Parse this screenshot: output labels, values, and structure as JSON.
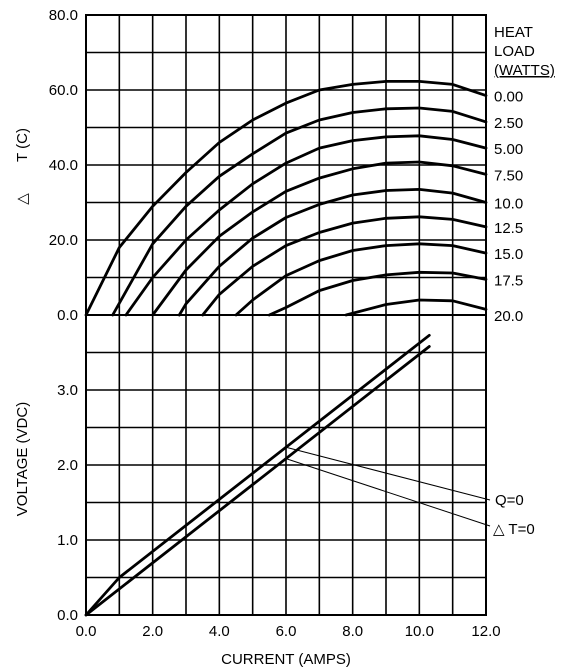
{
  "chart_data": [
    {
      "type": "line",
      "ylabel_symbol": "△",
      "ylabel": "T (C)",
      "xlim": [
        0,
        12
      ],
      "ylim": [
        0,
        80
      ],
      "x_ticks": [
        0,
        2,
        4,
        6,
        8,
        10,
        12
      ],
      "y_ticks": [
        0,
        20,
        40,
        60,
        80
      ],
      "y_tick_labels": [
        "0.0",
        "20.0",
        "40.0",
        "60.0",
        "80.0"
      ],
      "grid": true,
      "legend_title": [
        "HEAT",
        "LOAD",
        "(WATTS)"
      ],
      "legend_placement": "right",
      "series": [
        {
          "name": "0.00",
          "label_y": 58.5,
          "x": [
            0,
            1,
            2,
            3,
            4,
            5,
            6,
            7,
            8,
            9,
            10,
            11,
            12
          ],
          "y": [
            0,
            18,
            29,
            38,
            46,
            52,
            56.5,
            60,
            61.5,
            62.3,
            62.3,
            61.5,
            58.5
          ]
        },
        {
          "name": "2.50",
          "label_y": 51.5,
          "x": [
            0.8,
            2,
            3,
            4,
            5,
            6,
            7,
            8,
            9,
            10,
            11,
            12
          ],
          "y": [
            0,
            19,
            29,
            37,
            43,
            48.5,
            52,
            54,
            55,
            55.2,
            54.3,
            51.5
          ]
        },
        {
          "name": "5.00",
          "label_y": 44.5,
          "x": [
            1.2,
            2,
            3,
            4,
            5,
            6,
            7,
            8,
            9,
            10,
            11,
            12
          ],
          "y": [
            0,
            10,
            20,
            28,
            35,
            40.5,
            44.5,
            46.5,
            47.5,
            47.8,
            46.8,
            44.5
          ]
        },
        {
          "name": "7.50",
          "label_y": 37.5,
          "x": [
            2,
            3,
            4,
            5,
            6,
            7,
            8,
            9,
            10,
            11,
            12
          ],
          "y": [
            0,
            12,
            21,
            27.5,
            33,
            36.5,
            39,
            40.5,
            40.8,
            39.8,
            37.5
          ]
        },
        {
          "name": "10.0",
          "label_y": 30,
          "x": [
            2.8,
            3,
            4,
            5,
            6,
            7,
            8,
            9,
            10,
            11,
            12
          ],
          "y": [
            0,
            3,
            13,
            20.5,
            26,
            29.5,
            32,
            33.2,
            33.5,
            32.5,
            30
          ]
        },
        {
          "name": "12.5",
          "label_y": 23.5,
          "x": [
            3.5,
            4,
            5,
            6,
            7,
            8,
            9,
            10,
            11,
            12
          ],
          "y": [
            0,
            5.5,
            13,
            18.5,
            22,
            24.5,
            25.8,
            26.2,
            25.5,
            23.5
          ]
        },
        {
          "name": "15.0",
          "label_y": 16.5,
          "x": [
            4.5,
            5,
            6,
            7,
            8,
            9,
            10,
            11,
            12
          ],
          "y": [
            0,
            4,
            10.5,
            14.5,
            17.2,
            18.5,
            19,
            18.5,
            16.5
          ]
        },
        {
          "name": "17.5",
          "label_y": 9.5,
          "x": [
            5.5,
            6,
            7,
            8,
            9,
            10,
            11,
            12
          ],
          "y": [
            0,
            2,
            6.5,
            9.2,
            10.7,
            11.4,
            11.2,
            9.5
          ]
        },
        {
          "name": "20.0",
          "label_y": 0,
          "x": [
            7.8,
            9,
            10,
            11,
            12
          ],
          "y": [
            0,
            2.8,
            4,
            3.8,
            1.5
          ]
        }
      ]
    },
    {
      "type": "line",
      "xlabel": "CURRENT (AMPS)",
      "ylabel": "VOLTAGE (VDC)",
      "xlim": [
        0,
        12
      ],
      "ylim": [
        0,
        4
      ],
      "x_ticks": [
        0,
        2,
        4,
        6,
        8,
        10,
        12
      ],
      "x_tick_labels": [
        "0.0",
        "2.0",
        "4.0",
        "6.0",
        "8.0",
        "10.0",
        "12.0"
      ],
      "y_ticks": [
        0,
        1,
        2,
        3
      ],
      "y_tick_labels": [
        "0.0",
        "1.0",
        "2.0",
        "3.0"
      ],
      "grid": true,
      "series": [
        {
          "name": "Q=0",
          "x": [
            0,
            1,
            10.3
          ],
          "y": [
            0,
            0.5,
            3.73
          ]
        },
        {
          "name": "△ T=0",
          "x": [
            0,
            10.3
          ],
          "y": [
            0,
            3.58
          ]
        }
      ],
      "annotations": [
        {
          "text": "Q=0",
          "series": 0,
          "at_x": 6.0
        },
        {
          "text": "△ T=0",
          "series": 1,
          "at_x": 6.0
        }
      ]
    }
  ]
}
